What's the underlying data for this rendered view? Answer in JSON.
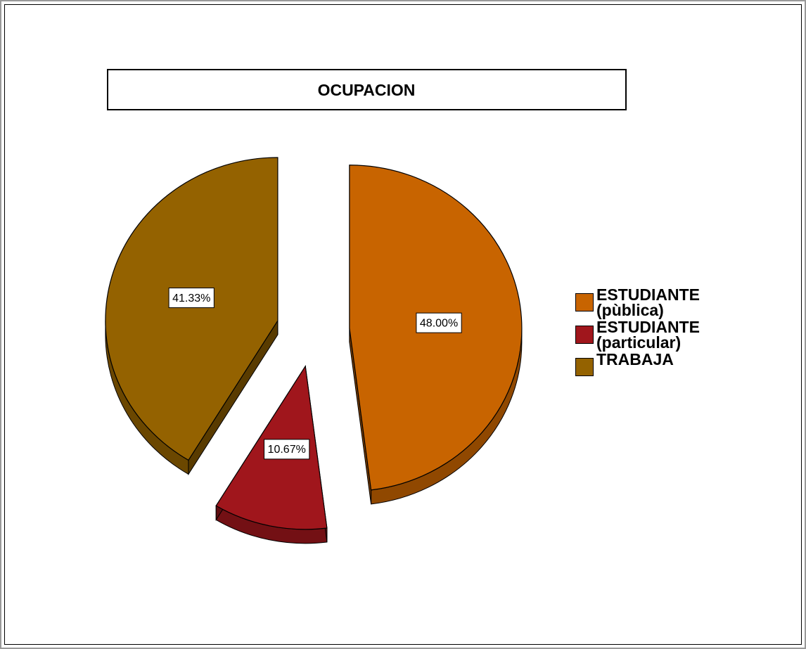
{
  "chart_data": {
    "type": "pie",
    "title": "OCUPACION",
    "categories": [
      "ESTUDIANTE (pùblica)",
      "ESTUDIANTE (particular)",
      "TRABAJA"
    ],
    "values": [
      48.0,
      10.67,
      41.33
    ],
    "value_labels": [
      "48.00%",
      "10.67%",
      "41.33%"
    ],
    "colors": [
      "#c86400",
      "#a0161c",
      "#946200"
    ],
    "legend": "right"
  }
}
